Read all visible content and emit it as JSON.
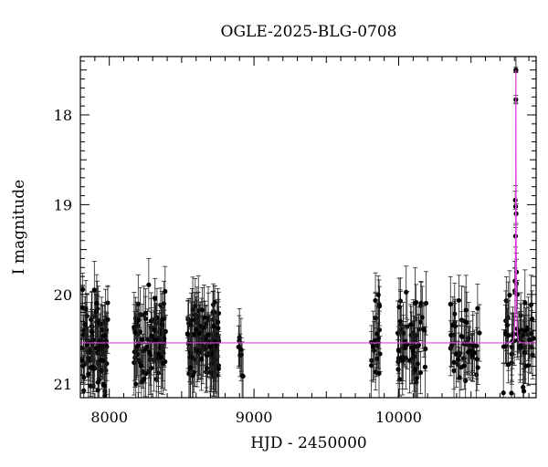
{
  "chart_data": {
    "type": "scatter",
    "title": "OGLE-2025-BLG-0708",
    "xlabel": "HJD - 2450000",
    "ylabel": "I magnitude",
    "xlim": [
      7800,
      10950
    ],
    "ylim": [
      21.15,
      17.35
    ],
    "y_inverted": true,
    "grid": false,
    "x_ticks": [
      "8000",
      "9000",
      "10000"
    ],
    "x_tick_values": [
      8000,
      9000,
      10000
    ],
    "y_ticks": [
      "18",
      "19",
      "20",
      "21"
    ],
    "y_tick_values": [
      18,
      19,
      20,
      21
    ],
    "model_color": "#e040e0",
    "point_color": "#000000",
    "baseline_mag": 20.54,
    "peak": {
      "hjd": 10810,
      "mag": 17.5,
      "tE_days": 7
    },
    "seasons": [
      {
        "start": 7810,
        "end": 7990,
        "n": 95
      },
      {
        "start": 8170,
        "end": 8390,
        "n": 90
      },
      {
        "start": 8540,
        "end": 8760,
        "n": 120
      },
      {
        "start": 8880,
        "end": 8925,
        "n": 8
      },
      {
        "start": 9800,
        "end": 9880,
        "n": 22
      },
      {
        "start": 9990,
        "end": 10190,
        "n": 60
      },
      {
        "start": 10350,
        "end": 10560,
        "n": 50
      },
      {
        "start": 10720,
        "end": 10940,
        "n": 60
      }
    ],
    "peak_points": [
      {
        "x": 10810,
        "y": 17.5
      },
      {
        "x": 10810,
        "y": 17.83
      },
      {
        "x": 10806,
        "y": 18.95
      },
      {
        "x": 10812,
        "y": 19.1
      },
      {
        "x": 10808,
        "y": 19.35
      },
      {
        "x": 10815,
        "y": 19.75
      },
      {
        "x": 10803,
        "y": 19.85
      },
      {
        "x": 10820,
        "y": 20.0
      }
    ]
  }
}
